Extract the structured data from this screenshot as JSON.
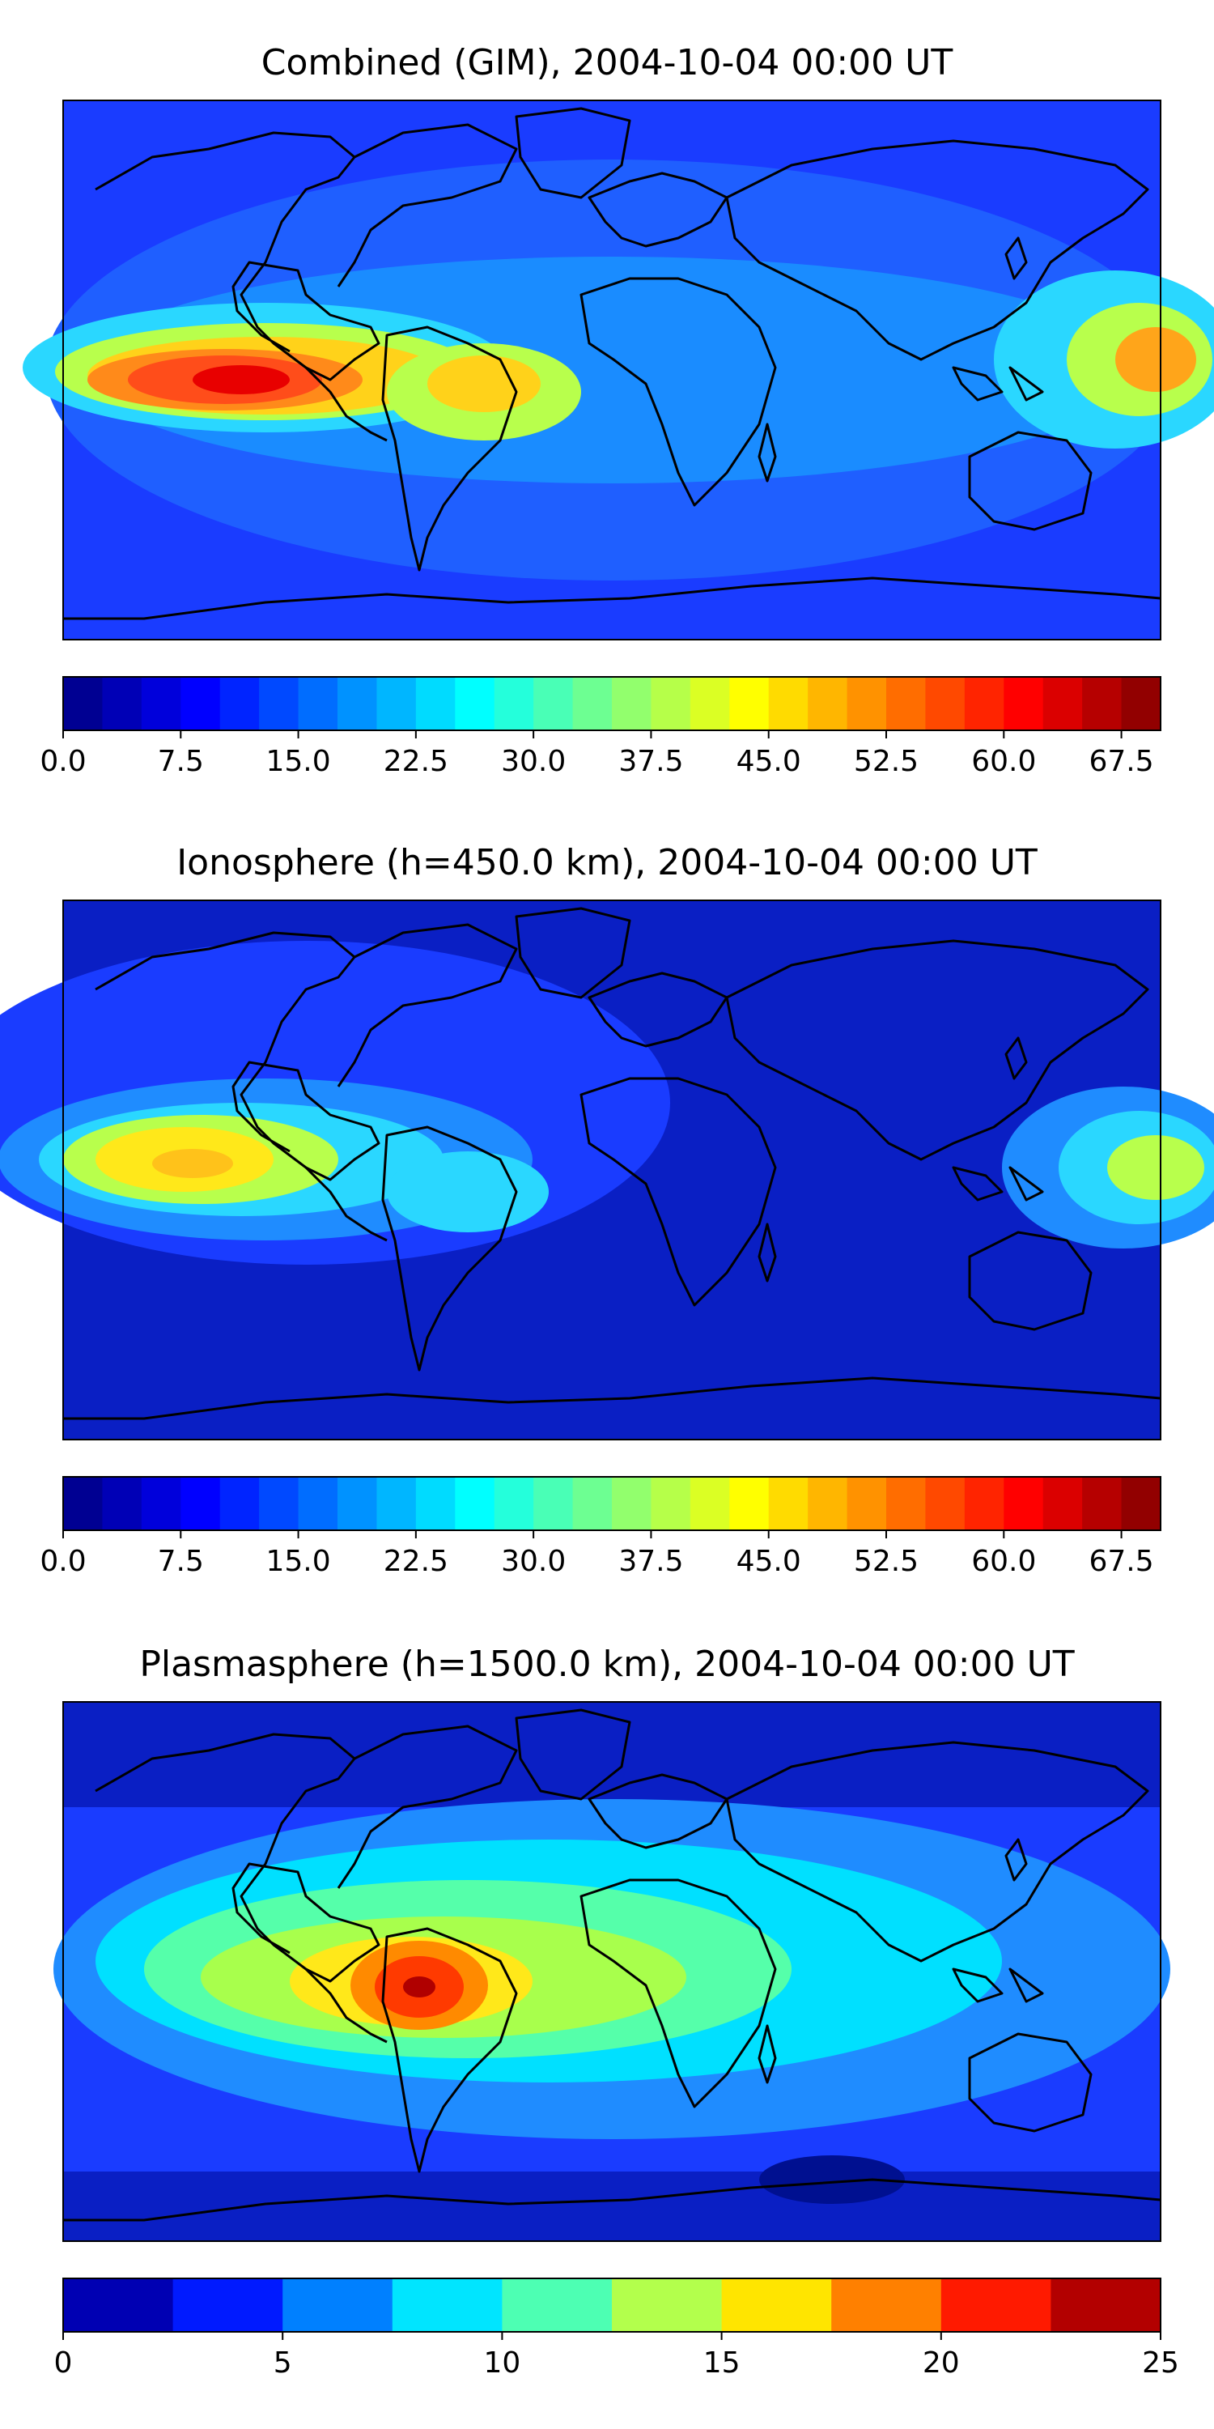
{
  "panels": [
    {
      "title": "Combined (GIM), 2004-10-04 00:00 UT",
      "colorbar": {
        "vmin": 0,
        "vmax": 70,
        "levels": 28,
        "ticks": [
          "0.0",
          "7.5",
          "15.0",
          "22.5",
          "30.0",
          "37.5",
          "45.0",
          "52.5",
          "60.0",
          "67.5"
        ],
        "tick_values": [
          0,
          7.5,
          15,
          22.5,
          30,
          37.5,
          45,
          52.5,
          60,
          67.5
        ]
      }
    },
    {
      "title": "Ionosphere  (h=450.0 km), 2004-10-04 00:00 UT",
      "colorbar": {
        "vmin": 0,
        "vmax": 70,
        "levels": 28,
        "ticks": [
          "0.0",
          "7.5",
          "15.0",
          "22.5",
          "30.0",
          "37.5",
          "45.0",
          "52.5",
          "60.0",
          "67.5"
        ],
        "tick_values": [
          0,
          7.5,
          15,
          22.5,
          30,
          37.5,
          45,
          52.5,
          60,
          67.5
        ]
      }
    },
    {
      "title": "Plasmasphere (h=1500.0 km), 2004-10-04 00:00 UT",
      "colorbar": {
        "vmin": 0,
        "vmax": 25,
        "levels": 10,
        "ticks": [
          "0",
          "5",
          "10",
          "15",
          "20",
          "25"
        ],
        "tick_values": [
          0,
          5,
          10,
          15,
          20,
          25
        ]
      }
    }
  ],
  "colormap": "jet",
  "map_projection": "equirectangular"
}
